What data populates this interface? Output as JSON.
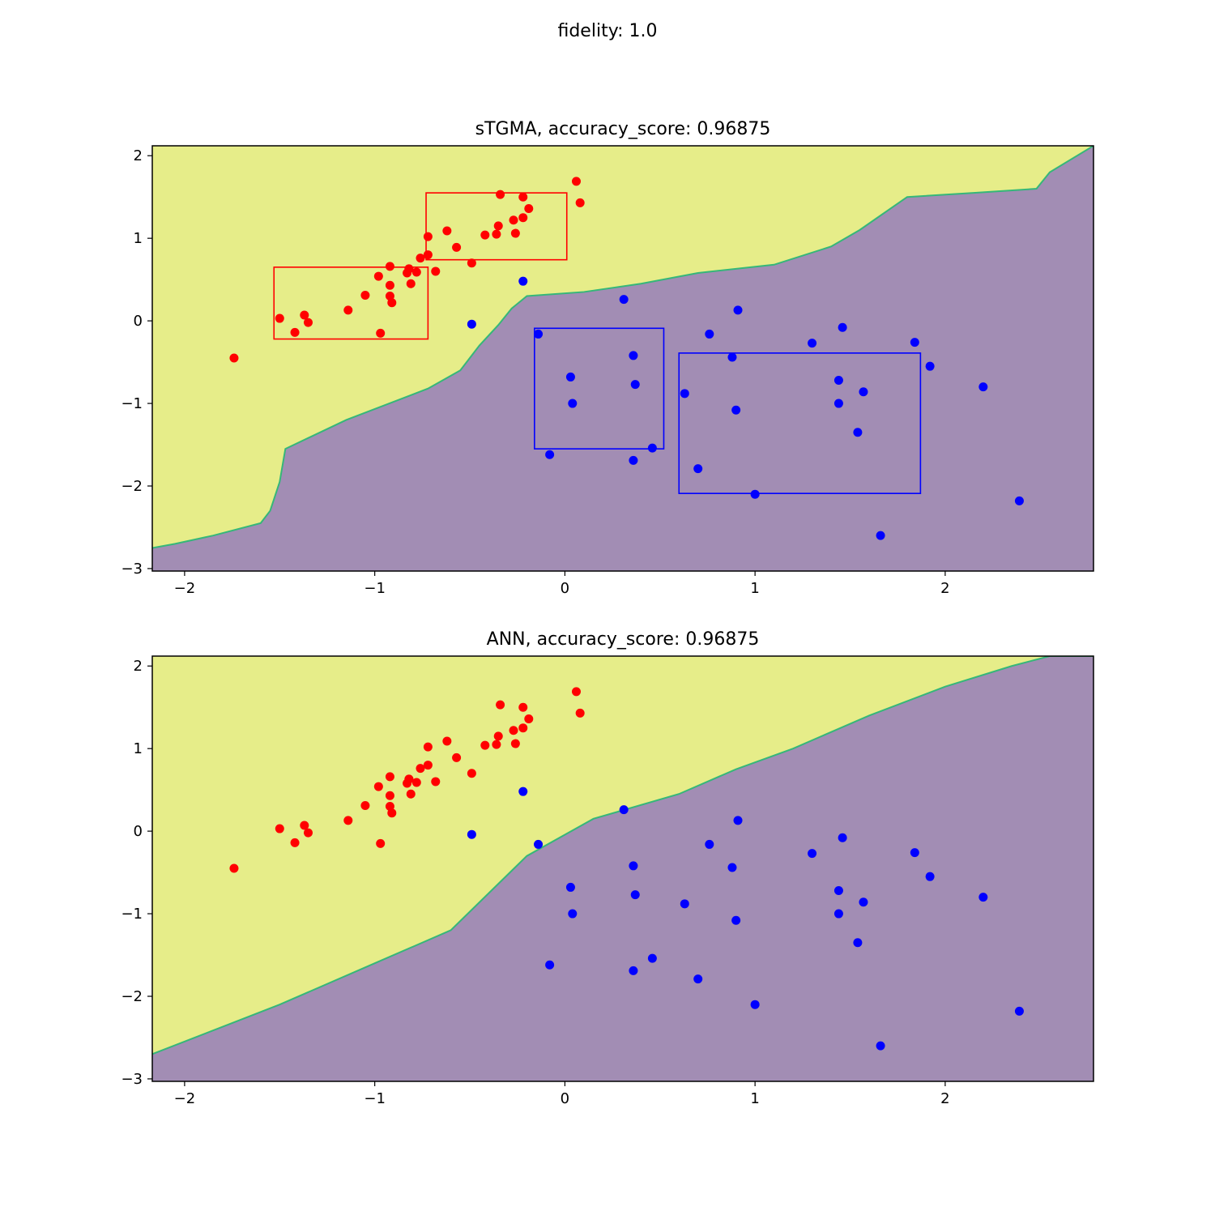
{
  "figure": {
    "suptitle": "fidelity: 1.0"
  },
  "colors": {
    "class_a": "#ff0000",
    "class_b": "#0000ff",
    "region_a": "#e6ed89",
    "region_b": "#a28db4",
    "boundary": "#35b779"
  },
  "chart_data": [
    {
      "type": "scatter",
      "title": "sTGMA, accuracy_score: 0.96875",
      "xlim": [
        -2.17,
        2.78
      ],
      "ylim": [
        -3.03,
        2.12
      ],
      "xticks": [
        -2,
        -1,
        0,
        1,
        2
      ],
      "xtick_labels": [
        "−2",
        "−1",
        "0",
        "1",
        "2"
      ],
      "yticks": [
        -3,
        -2,
        -1,
        0,
        1,
        2
      ],
      "ytick_labels": [
        "−3",
        "−2",
        "−1",
        "0",
        "1",
        "2"
      ],
      "grid": false,
      "boundary": [
        [
          -2.17,
          -2.75
        ],
        [
          -2.05,
          -2.7
        ],
        [
          -1.85,
          -2.6
        ],
        [
          -1.6,
          -2.45
        ],
        [
          -1.55,
          -2.3
        ],
        [
          -1.5,
          -1.95
        ],
        [
          -1.47,
          -1.55
        ],
        [
          -1.15,
          -1.2
        ],
        [
          -0.72,
          -0.82
        ],
        [
          -0.55,
          -0.6
        ],
        [
          -0.45,
          -0.3
        ],
        [
          -0.35,
          -0.05
        ],
        [
          -0.28,
          0.15
        ],
        [
          -0.2,
          0.3
        ],
        [
          0.1,
          0.35
        ],
        [
          0.4,
          0.45
        ],
        [
          0.7,
          0.58
        ],
        [
          1.1,
          0.68
        ],
        [
          1.4,
          0.9
        ],
        [
          1.55,
          1.1
        ],
        [
          1.8,
          1.5
        ],
        [
          2.15,
          1.55
        ],
        [
          2.48,
          1.6
        ],
        [
          2.55,
          1.8
        ],
        [
          2.78,
          2.12
        ]
      ],
      "boxes": [
        {
          "class": "A",
          "x": [
            -1.53,
            -0.72
          ],
          "y": [
            -0.22,
            0.65
          ]
        },
        {
          "class": "A",
          "x": [
            -0.73,
            0.01
          ],
          "y": [
            0.74,
            1.55
          ]
        },
        {
          "class": "B",
          "x": [
            -0.16,
            0.52
          ],
          "y": [
            -1.55,
            -0.09
          ]
        },
        {
          "class": "B",
          "x": [
            0.6,
            1.87
          ],
          "y": [
            -2.09,
            -0.39
          ]
        }
      ],
      "series": [
        {
          "x": [
            -1.74,
            -1.5,
            -1.42,
            -1.37,
            -1.35,
            -1.14,
            -0.98,
            -0.97,
            -1.05,
            -0.92,
            -0.92,
            -0.92,
            -0.91,
            -0.83,
            -0.82,
            -0.81,
            -0.78,
            -0.76,
            -0.72,
            -0.72,
            -0.68,
            -0.62,
            -0.57,
            -0.49,
            -0.42,
            -0.36,
            -0.35,
            -0.34,
            -0.27,
            -0.26,
            -0.22,
            -0.22,
            -0.19,
            0.06,
            0.08,
            -0.82
          ],
          "y": [
            -0.45,
            0.03,
            -0.14,
            0.07,
            -0.02,
            0.13,
            0.54,
            -0.15,
            0.31,
            0.43,
            0.66,
            0.3,
            0.22,
            0.58,
            0.63,
            0.45,
            0.59,
            0.76,
            1.02,
            0.8,
            0.6,
            1.09,
            0.89,
            0.7,
            1.04,
            1.05,
            1.15,
            1.53,
            1.22,
            1.06,
            1.25,
            1.5,
            1.36,
            1.69,
            1.43,
            0.63
          ]
        },
        {
          "x": [
            -0.49,
            -0.22,
            -0.14,
            -0.08,
            0.03,
            0.04,
            0.31,
            0.36,
            0.36,
            0.37,
            0.46,
            0.63,
            0.7,
            0.76,
            0.88,
            0.9,
            0.91,
            1.0,
            1.3,
            1.44,
            1.44,
            1.46,
            1.54,
            1.57,
            1.66,
            1.84,
            1.92,
            2.2,
            2.39
          ],
          "y": [
            -0.04,
            0.48,
            -0.16,
            -1.62,
            -0.68,
            -1.0,
            0.26,
            -0.42,
            -1.69,
            -0.77,
            -1.54,
            -0.88,
            -1.79,
            -0.16,
            -0.44,
            -1.08,
            0.13,
            -2.1,
            -0.27,
            -0.72,
            -1.0,
            -0.08,
            -1.35,
            -0.86,
            -2.6,
            -0.26,
            -0.55,
            -0.8,
            -2.18
          ]
        }
      ]
    },
    {
      "type": "scatter",
      "title": "ANN, accuracy_score: 0.96875",
      "xlim": [
        -2.17,
        2.78
      ],
      "ylim": [
        -3.03,
        2.12
      ],
      "xticks": [
        -2,
        -1,
        0,
        1,
        2
      ],
      "xtick_labels": [
        "−2",
        "−1",
        "0",
        "1",
        "2"
      ],
      "yticks": [
        -3,
        -2,
        -1,
        0,
        1,
        2
      ],
      "ytick_labels": [
        "−3",
        "−2",
        "−1",
        "0",
        "1",
        "2"
      ],
      "grid": false,
      "boundary": [
        [
          -2.17,
          -2.7
        ],
        [
          -1.5,
          -2.1
        ],
        [
          -1.0,
          -1.6
        ],
        [
          -0.6,
          -1.2
        ],
        [
          -0.2,
          -0.3
        ],
        [
          0.15,
          0.15
        ],
        [
          0.6,
          0.45
        ],
        [
          0.9,
          0.75
        ],
        [
          1.2,
          1.0
        ],
        [
          1.6,
          1.4
        ],
        [
          2.0,
          1.75
        ],
        [
          2.35,
          2.0
        ],
        [
          2.55,
          2.12
        ],
        [
          2.78,
          2.12
        ]
      ],
      "boxes": [],
      "series": [
        {
          "x": [
            -1.74,
            -1.5,
            -1.42,
            -1.37,
            -1.35,
            -1.14,
            -0.98,
            -0.97,
            -1.05,
            -0.92,
            -0.92,
            -0.92,
            -0.91,
            -0.83,
            -0.82,
            -0.81,
            -0.78,
            -0.76,
            -0.72,
            -0.72,
            -0.68,
            -0.62,
            -0.57,
            -0.49,
            -0.42,
            -0.36,
            -0.35,
            -0.34,
            -0.27,
            -0.26,
            -0.22,
            -0.22,
            -0.19,
            0.06,
            0.08,
            -0.82
          ],
          "y": [
            -0.45,
            0.03,
            -0.14,
            0.07,
            -0.02,
            0.13,
            0.54,
            -0.15,
            0.31,
            0.43,
            0.66,
            0.3,
            0.22,
            0.58,
            0.63,
            0.45,
            0.59,
            0.76,
            1.02,
            0.8,
            0.6,
            1.09,
            0.89,
            0.7,
            1.04,
            1.05,
            1.15,
            1.53,
            1.22,
            1.06,
            1.25,
            1.5,
            1.36,
            1.69,
            1.43,
            0.63
          ]
        },
        {
          "x": [
            -0.49,
            -0.22,
            -0.14,
            -0.08,
            0.03,
            0.04,
            0.31,
            0.36,
            0.36,
            0.37,
            0.46,
            0.63,
            0.7,
            0.76,
            0.88,
            0.9,
            0.91,
            1.0,
            1.3,
            1.44,
            1.44,
            1.46,
            1.54,
            1.57,
            1.66,
            1.84,
            1.92,
            2.2,
            2.39
          ],
          "y": [
            -0.04,
            0.48,
            -0.16,
            -1.62,
            -0.68,
            -1.0,
            0.26,
            -0.42,
            -1.69,
            -0.77,
            -1.54,
            -0.88,
            -1.79,
            -0.16,
            -0.44,
            -1.08,
            0.13,
            -2.1,
            -0.27,
            -0.72,
            -1.0,
            -0.08,
            -1.35,
            -0.86,
            -2.6,
            -0.26,
            -0.55,
            -0.8,
            -2.18
          ]
        }
      ]
    }
  ]
}
